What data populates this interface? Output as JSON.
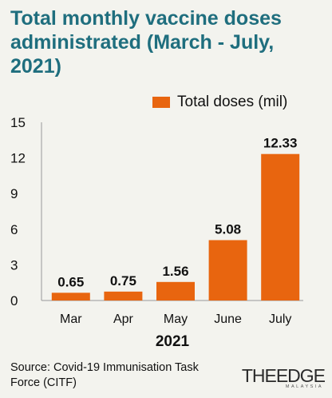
{
  "title": "Total monthly vaccine doses administrated (March - July, 2021)",
  "source": "Source: Covid-19 Immunisation Task Force (CITF)",
  "logo": {
    "text": "THEEDGE",
    "sub": "MALAYSIA"
  },
  "colors": {
    "bar": "#e8650f",
    "title": "#1f6e7e",
    "background": "#f3f3ee"
  },
  "chart_data": {
    "type": "bar",
    "categories": [
      "Mar",
      "Apr",
      "May",
      "June",
      "July"
    ],
    "values": [
      0.65,
      0.75,
      1.56,
      5.08,
      12.33
    ],
    "value_labels": [
      "0.65",
      "0.75",
      "1.56",
      "5.08",
      "12.33"
    ],
    "series": [
      {
        "name": "Total doses (mil)",
        "values": [
          0.65,
          0.75,
          1.56,
          5.08,
          12.33
        ]
      }
    ],
    "xlabel": "2021",
    "ylabel": "",
    "ylim": [
      0,
      15
    ],
    "yticks": [
      0,
      3,
      6,
      9,
      12,
      15
    ],
    "grid": false,
    "legend": "top-right"
  }
}
